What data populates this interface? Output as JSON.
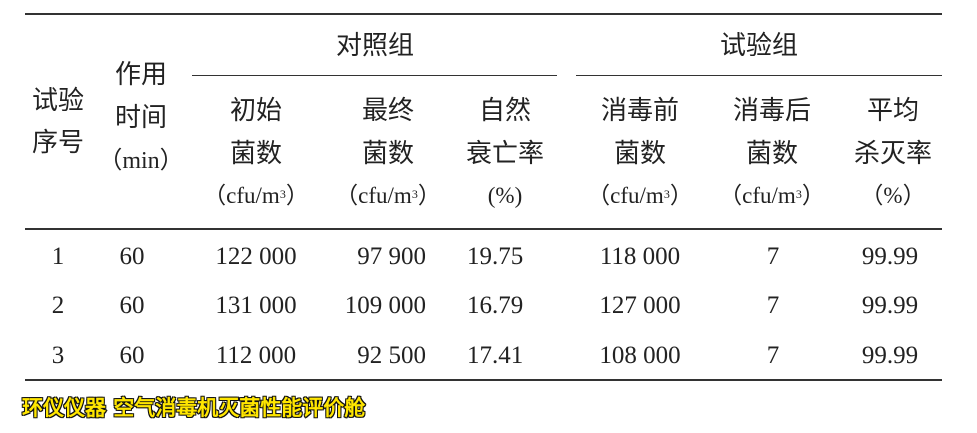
{
  "table": {
    "group_headers": [
      "对照组",
      "试验组"
    ],
    "headers": [
      {
        "lines": [
          "试验",
          "序号"
        ]
      },
      {
        "lines": [
          "作用",
          "时间",
          "（min）"
        ]
      },
      {
        "lines": [
          "初始",
          "菌数",
          "（cfu/m",
          "3",
          "）"
        ]
      },
      {
        "lines": [
          "最终",
          "菌数",
          "（cfu/m",
          "3",
          "）"
        ]
      },
      {
        "lines": [
          "自然",
          "衰亡率",
          "(%)"
        ]
      },
      {
        "lines": [
          "消毒前",
          "菌数",
          "（cfu/m",
          "3",
          "）"
        ]
      },
      {
        "lines": [
          "消毒后",
          "菌数",
          "（cfu/m",
          "3",
          "）"
        ]
      },
      {
        "lines": [
          "平均",
          "杀灭率",
          "（%）"
        ]
      }
    ],
    "rows": [
      [
        "1",
        "60",
        "122 000",
        "97 900",
        "19.75",
        "118 000",
        "7",
        "99.99"
      ],
      [
        "2",
        "60",
        "131 000",
        "109 000",
        "16.79",
        "127 000",
        "7",
        "99.99"
      ],
      [
        "3",
        "60",
        "112 000",
        "92 500",
        "17.41",
        "108 000",
        "7",
        "99.99"
      ]
    ]
  },
  "caption": "环仪仪器 空气消毒机灭菌性能评价舱",
  "colors": {
    "caption_fill": "#ffe600",
    "caption_outline": "#111111"
  }
}
